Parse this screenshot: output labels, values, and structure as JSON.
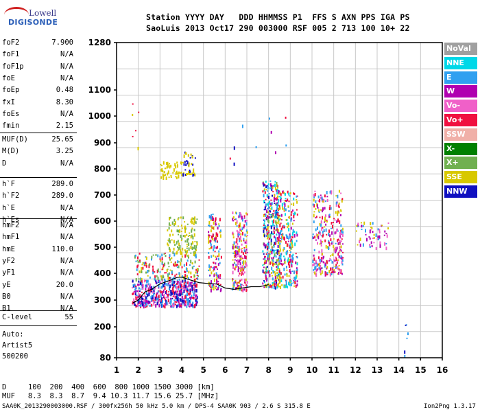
{
  "logo": {
    "top": "Lowell",
    "main": "DIGISONDE"
  },
  "header": {
    "line1": "Station YYYY DAY   DDD HHMMSS P1  FFS S AXN PPS IGA PS",
    "line2": "SaoLuis 2013 Oct17 290 003000 RSF 005 2 713 100 10+ 22"
  },
  "params_group1": [
    {
      "name": "foF2",
      "value": "7.900"
    },
    {
      "name": "foF1",
      "value": "N/A"
    },
    {
      "name": "foF1p",
      "value": "N/A"
    },
    {
      "name": "foE",
      "value": "N/A"
    },
    {
      "name": "foEp",
      "value": "0.48"
    },
    {
      "name": "fxI",
      "value": "8.30"
    },
    {
      "name": "foEs",
      "value": "N/A"
    },
    {
      "name": "fmin",
      "value": "2.15"
    }
  ],
  "params_group2": [
    {
      "name": "MUF(D)",
      "value": "25.65"
    },
    {
      "name": "M(D)",
      "value": "3.25"
    },
    {
      "name": "D",
      "value": "N/A"
    }
  ],
  "params_group3": [
    {
      "name": "h`F",
      "value": "289.0"
    },
    {
      "name": "h`F2",
      "value": "289.0"
    },
    {
      "name": "h`E",
      "value": "N/A"
    },
    {
      "name": "h`Es",
      "value": "N/A"
    }
  ],
  "params_group4": [
    {
      "name": "hmF2",
      "value": "N/A"
    },
    {
      "name": "hmF1",
      "value": "N/A"
    },
    {
      "name": "hmE",
      "value": "110.0"
    },
    {
      "name": "yF2",
      "value": "N/A"
    },
    {
      "name": "yF1",
      "value": "N/A"
    },
    {
      "name": "yE",
      "value": "20.0"
    },
    {
      "name": "B0",
      "value": "N/A"
    },
    {
      "name": "B1",
      "value": "N/A"
    }
  ],
  "params_group5": [
    {
      "name": "C-level",
      "value": "55"
    }
  ],
  "auto": {
    "label": "Auto:",
    "artist": "Artist5",
    "code": "500200"
  },
  "bottom": {
    "d_line": "D     100  200  400  600  800 1000 1500 3000 [km]",
    "muf_line": "MUF   8.3  8.3  8.7  9.4 10.3 11.7 15.6 25.7 [MHz]",
    "footer": "SAA0K_2013290003000.RSF / 300fx256h 50 kHz 5.0 km / DPS-4 SAA0K 903 / 2.6 S 315.8 E",
    "version": "Ion2Png 1.3.17"
  },
  "chart_data": {
    "type": "scatter",
    "xlim": [
      1,
      16
    ],
    "ylim": [
      80,
      1280
    ],
    "x_ticks": [
      "1",
      "2",
      "3",
      "4",
      "5",
      "6",
      "7",
      "8",
      "9",
      "10",
      "11",
      "12",
      "13",
      "14",
      "15",
      "16"
    ],
    "y_ticks": [
      {
        "label": "1280",
        "value": 1280
      },
      {
        "label": "1100",
        "value": 1100
      },
      {
        "label": "1000",
        "value": 1000
      },
      {
        "label": "900",
        "value": 900
      },
      {
        "label": "800",
        "value": 800
      },
      {
        "label": "700",
        "value": 700
      },
      {
        "label": "600",
        "value": 600
      },
      {
        "label": "500",
        "value": 500
      },
      {
        "label": "400",
        "value": 400
      },
      {
        "label": "300",
        "value": 300
      },
      {
        "label": "200",
        "value": 200
      },
      {
        "label": "80",
        "value": 80
      }
    ],
    "grid": true,
    "legend_position": "right",
    "legend": [
      {
        "name": "NoVal",
        "color": "#a0a0a0"
      },
      {
        "name": "NNE",
        "color": "#00d8e8"
      },
      {
        "name": "E",
        "color": "#30a0f0"
      },
      {
        "name": "W",
        "color": "#b000b0"
      },
      {
        "name": "Vo-",
        "color": "#f060c8"
      },
      {
        "name": "Vo+",
        "color": "#f01040"
      },
      {
        "name": "SSW",
        "color": "#f0b0a8"
      },
      {
        "name": "X-",
        "color": "#008000"
      },
      {
        "name": "X+",
        "color": "#70b050"
      },
      {
        "name": "SSE",
        "color": "#d8c800"
      },
      {
        "name": "NNW",
        "color": "#1010c0"
      }
    ],
    "clusters": [
      {
        "x": [
          1.7,
          4.7
        ],
        "y": [
          280,
          380
        ],
        "colors": [
          "#f01040",
          "#b000b0",
          "#f060c8",
          "#1010c0",
          "#30a0f0"
        ],
        "n": 520
      },
      {
        "x": [
          1.8,
          4.8
        ],
        "y": [
          380,
          480
        ],
        "colors": [
          "#d8c800",
          "#70b050",
          "#f01040",
          "#30a0f0"
        ],
        "n": 180
      },
      {
        "x": [
          3.0,
          4.0
        ],
        "y": [
          770,
          830
        ],
        "colors": [
          "#d8c800"
        ],
        "n": 50
      },
      {
        "x": [
          4.0,
          4.6
        ],
        "y": [
          780,
          870
        ],
        "colors": [
          "#d8c800",
          "#1010c0"
        ],
        "n": 40
      },
      {
        "x": [
          3.3,
          4.7
        ],
        "y": [
          480,
          620
        ],
        "colors": [
          "#d8c800",
          "#70b050"
        ],
        "n": 120
      },
      {
        "x": [
          5.2,
          5.8
        ],
        "y": [
          340,
          640
        ],
        "colors": [
          "#d8c800",
          "#f01040",
          "#30a0f0",
          "#b000b0"
        ],
        "n": 140
      },
      {
        "x": [
          6.3,
          7.0
        ],
        "y": [
          340,
          640
        ],
        "colors": [
          "#f01040",
          "#b000b0",
          "#d8c800",
          "#30a0f0",
          "#f060c8"
        ],
        "n": 220
      },
      {
        "x": [
          7.7,
          8.5
        ],
        "y": [
          350,
          760
        ],
        "colors": [
          "#00d8e8",
          "#30a0f0",
          "#b000b0",
          "#f01040",
          "#d8c800",
          "#1010c0",
          "#70b050"
        ],
        "n": 380
      },
      {
        "x": [
          8.4,
          9.3
        ],
        "y": [
          350,
          720
        ],
        "colors": [
          "#f01040",
          "#b000b0",
          "#d8c800",
          "#00d8e8",
          "#30a0f0"
        ],
        "n": 260
      },
      {
        "x": [
          10.0,
          11.4
        ],
        "y": [
          400,
          720
        ],
        "colors": [
          "#f01040",
          "#b000b0",
          "#d8c800",
          "#30a0f0",
          "#f060c8"
        ],
        "n": 300
      },
      {
        "x": [
          12.0,
          13.5
        ],
        "y": [
          500,
          600
        ],
        "colors": [
          "#b000b0",
          "#f060c8",
          "#d8c800",
          "#30a0f0"
        ],
        "n": 60
      },
      {
        "x": [
          14.2,
          14.4
        ],
        "y": [
          90,
          220
        ],
        "colors": [
          "#b000b0",
          "#1010c0",
          "#30a0f0"
        ],
        "n": 6
      },
      {
        "x": [
          1.7,
          2.0
        ],
        "y": [
          880,
          1060
        ],
        "colors": [
          "#b000b0",
          "#f01040",
          "#d8c800",
          "#1010c0"
        ],
        "n": 6
      },
      {
        "x": [
          6.0,
          9.0
        ],
        "y": [
          820,
          1040
        ],
        "colors": [
          "#b000b0",
          "#30a0f0",
          "#f01040",
          "#1010c0"
        ],
        "n": 10
      }
    ],
    "trace": {
      "x": [
        1.75,
        2.0,
        2.3,
        2.6,
        3.0,
        3.4,
        3.8,
        4.0,
        4.4,
        4.8,
        5.2,
        5.6,
        6.0,
        6.4,
        6.8,
        7.2,
        7.6,
        8.0
      ],
      "y": [
        290,
        300,
        330,
        340,
        360,
        372,
        385,
        386,
        375,
        365,
        362,
        360,
        345,
        340,
        345,
        350,
        350,
        358
      ]
    }
  }
}
